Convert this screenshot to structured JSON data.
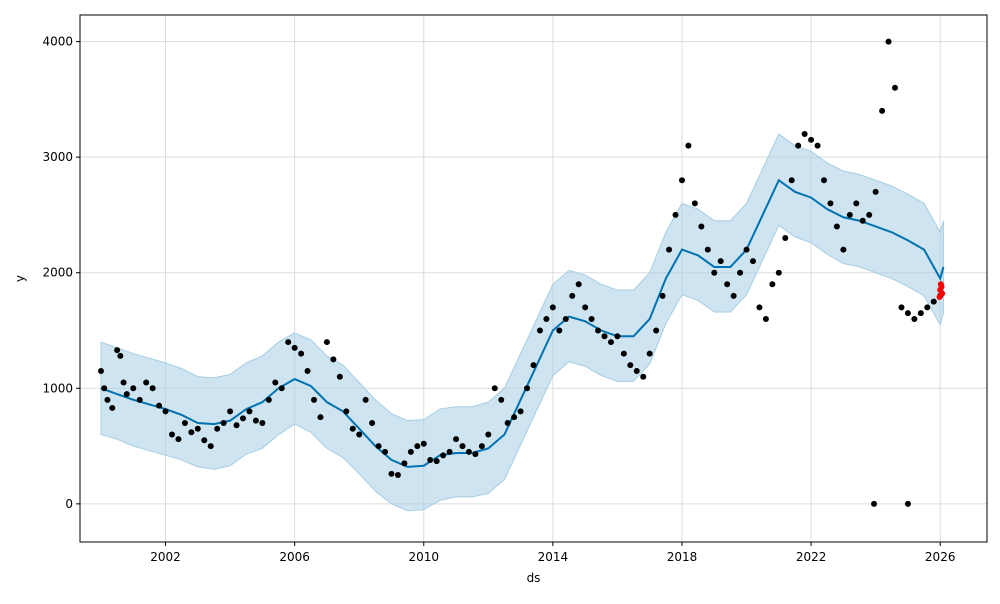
{
  "chart_data": {
    "type": "scatter",
    "title": "",
    "xlabel": "ds",
    "ylabel": "y",
    "xlim": [
      1999.35,
      2027.45
    ],
    "ylim": [
      -330,
      4230
    ],
    "grid": true,
    "x_ticks": [
      2002,
      2006,
      2010,
      2014,
      2018,
      2022,
      2026
    ],
    "x_tick_labels": [
      "2002",
      "2006",
      "2010",
      "2014",
      "2018",
      "2022",
      "2026"
    ],
    "y_ticks": [
      0,
      1000,
      2000,
      3000,
      4000
    ],
    "y_tick_labels": [
      "0",
      "1000",
      "2000",
      "3000",
      "4000"
    ],
    "colors": {
      "observed": "#000000",
      "forecast": "#0072B2",
      "uncertainty": "#A6CEE3",
      "highlight": "#FF0000",
      "grid": "#DDDDDD"
    },
    "forecast": {
      "x": [
        2000.0,
        2000.5,
        2001.0,
        2001.5,
        2002.0,
        2002.5,
        2003.0,
        2003.5,
        2004.0,
        2004.5,
        2005.0,
        2005.5,
        2006.0,
        2006.5,
        2007.0,
        2007.5,
        2008.0,
        2008.5,
        2009.0,
        2009.5,
        2010.0,
        2010.5,
        2011.0,
        2011.5,
        2012.0,
        2012.5,
        2013.0,
        2013.5,
        2014.0,
        2014.5,
        2015.0,
        2015.5,
        2016.0,
        2016.5,
        2017.0,
        2017.5,
        2018.0,
        2018.5,
        2019.0,
        2019.5,
        2020.0,
        2020.5,
        2021.0,
        2021.5,
        2022.0,
        2022.5,
        2023.0,
        2023.5,
        2024.0,
        2024.5,
        2025.0,
        2025.5,
        2026.0,
        2026.1
      ],
      "yhat": [
        1000,
        950,
        900,
        860,
        820,
        770,
        700,
        690,
        720,
        820,
        880,
        1000,
        1080,
        1020,
        880,
        800,
        650,
        500,
        380,
        320,
        330,
        420,
        440,
        440,
        480,
        600,
        900,
        1200,
        1500,
        1620,
        1580,
        1500,
        1450,
        1450,
        1600,
        1950,
        2200,
        2150,
        2050,
        2050,
        2200,
        2500,
        2800,
        2700,
        2650,
        2550,
        2480,
        2450,
        2400,
        2350,
        2280,
        2200,
        1950,
        2050
      ],
      "lower": [
        600,
        560,
        500,
        460,
        420,
        380,
        320,
        300,
        330,
        430,
        480,
        600,
        690,
        620,
        480,
        400,
        260,
        110,
        0,
        -60,
        -50,
        30,
        60,
        60,
        90,
        210,
        510,
        810,
        1110,
        1230,
        1190,
        1110,
        1060,
        1060,
        1210,
        1560,
        1810,
        1760,
        1660,
        1660,
        1810,
        2110,
        2410,
        2310,
        2260,
        2160,
        2080,
        2050,
        2000,
        1950,
        1880,
        1800,
        1550,
        1650
      ],
      "upper": [
        1400,
        1350,
        1300,
        1260,
        1220,
        1170,
        1100,
        1090,
        1120,
        1220,
        1280,
        1400,
        1480,
        1420,
        1280,
        1200,
        1050,
        900,
        780,
        720,
        730,
        820,
        840,
        840,
        880,
        1000,
        1300,
        1600,
        1900,
        2020,
        1980,
        1900,
        1850,
        1850,
        2000,
        2350,
        2600,
        2550,
        2450,
        2450,
        2600,
        2900,
        3200,
        3100,
        3050,
        2950,
        2880,
        2850,
        2800,
        2750,
        2680,
        2600,
        2350,
        2450
      ]
    },
    "observed": {
      "x": [
        2000.0,
        2000.1,
        2000.2,
        2000.35,
        2000.5,
        2000.6,
        2000.7,
        2000.8,
        2001.0,
        2001.2,
        2001.4,
        2001.6,
        2001.8,
        2002.0,
        2002.2,
        2002.4,
        2002.6,
        2002.8,
        2003.0,
        2003.2,
        2003.4,
        2003.6,
        2003.8,
        2004.0,
        2004.2,
        2004.4,
        2004.6,
        2004.8,
        2005.0,
        2005.2,
        2005.4,
        2005.6,
        2005.8,
        2006.0,
        2006.2,
        2006.4,
        2006.6,
        2006.8,
        2007.0,
        2007.2,
        2007.4,
        2007.6,
        2007.8,
        2008.0,
        2008.2,
        2008.4,
        2008.6,
        2008.8,
        2009.0,
        2009.2,
        2009.4,
        2009.6,
        2009.8,
        2010.0,
        2010.2,
        2010.4,
        2010.6,
        2010.8,
        2011.0,
        2011.2,
        2011.4,
        2011.6,
        2011.8,
        2012.0,
        2012.2,
        2012.4,
        2012.6,
        2012.8,
        2013.0,
        2013.2,
        2013.4,
        2013.6,
        2013.8,
        2014.0,
        2014.2,
        2014.4,
        2014.6,
        2014.8,
        2015.0,
        2015.2,
        2015.4,
        2015.6,
        2015.8,
        2016.0,
        2016.2,
        2016.4,
        2016.6,
        2016.8,
        2017.0,
        2017.2,
        2017.4,
        2017.6,
        2017.8,
        2018.0,
        2018.2,
        2018.4,
        2018.6,
        2018.8,
        2019.0,
        2019.2,
        2019.4,
        2019.6,
        2019.8,
        2020.0,
        2020.2,
        2020.4,
        2020.6,
        2020.8,
        2021.0,
        2021.2,
        2021.4,
        2021.6,
        2021.8,
        2022.0,
        2022.2,
        2022.4,
        2022.6,
        2022.8,
        2023.0,
        2023.2,
        2023.4,
        2023.6,
        2023.8,
        2024.0,
        2024.2,
        2024.4,
        2024.6,
        2024.8,
        2025.0,
        2025.2,
        2025.4,
        2025.6,
        2025.8,
        2026.0,
        2023.95,
        2025.0
      ],
      "y": [
        1150,
        1000,
        900,
        830,
        1330,
        1280,
        1050,
        950,
        1000,
        900,
        1050,
        1000,
        850,
        800,
        600,
        560,
        700,
        620,
        650,
        550,
        500,
        650,
        700,
        800,
        680,
        740,
        800,
        720,
        700,
        900,
        1050,
        1000,
        1400,
        1350,
        1300,
        1150,
        900,
        750,
        1400,
        1250,
        1100,
        800,
        650,
        600,
        900,
        700,
        500,
        450,
        260,
        250,
        350,
        450,
        500,
        520,
        380,
        370,
        420,
        450,
        560,
        500,
        450,
        430,
        500,
        600,
        1000,
        900,
        700,
        750,
        800,
        1000,
        1200,
        1500,
        1600,
        1700,
        1500,
        1600,
        1800,
        1900,
        1700,
        1600,
        1500,
        1450,
        1400,
        1450,
        1300,
        1200,
        1150,
        1100,
        1300,
        1500,
        1800,
        2200,
        2500,
        2800,
        3100,
        2600,
        2400,
        2200,
        2000,
        2100,
        1900,
        1800,
        2000,
        2200,
        2100,
        1700,
        1600,
        1900,
        2000,
        2300,
        2800,
        3100,
        3200,
        3150,
        3100,
        2800,
        2600,
        2400,
        2200,
        2500,
        2600,
        2450,
        2500,
        2700,
        3400,
        4000,
        3600,
        1700,
        1650,
        1600,
        1650,
        1700,
        1750,
        1800,
        0,
        0
      ]
    },
    "highlight": {
      "x": [
        2025.98,
        2026.0,
        2026.02,
        2026.04,
        2026.06
      ],
      "y": [
        1790,
        1850,
        1900,
        1880,
        1820
      ]
    }
  }
}
